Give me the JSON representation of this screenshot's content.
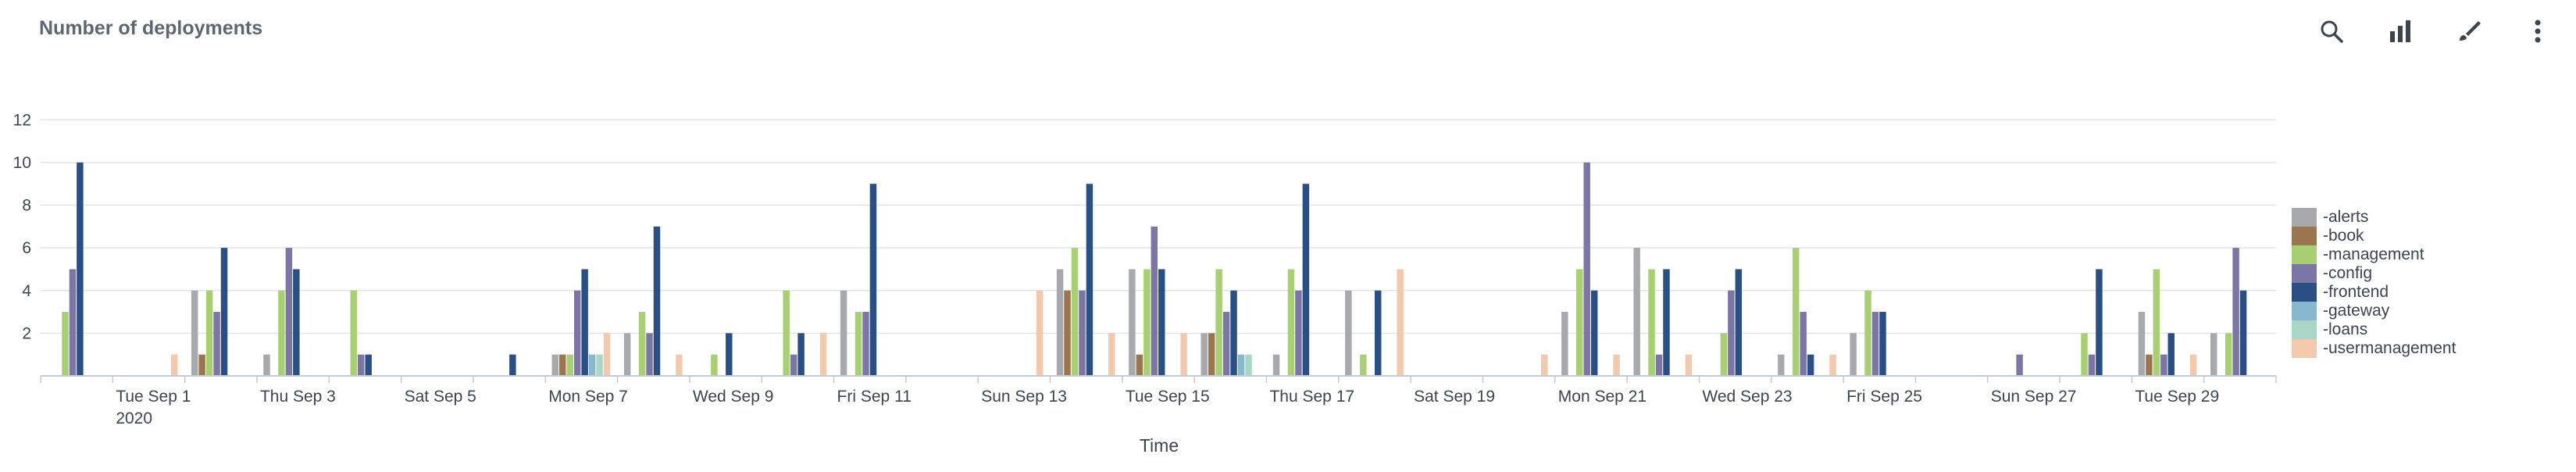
{
  "panel": {
    "title": "Number of deployments"
  },
  "toolbar": {
    "icons": [
      "search-icon",
      "bar-chart-icon",
      "brush-icon",
      "more-vertical-icon"
    ]
  },
  "colors": {
    "grid": "#e1e6eb",
    "axis": "#c3cbd4",
    "series": [
      "#a7a9ac",
      "#9b7550",
      "#a8d072",
      "#7b76a6",
      "#294f84",
      "#86b8cf",
      "#a9d6c7",
      "#f2c9ad"
    ]
  },
  "chart_data": {
    "type": "bar",
    "xlabel": "Time",
    "ylabel": "",
    "ylim": [
      0,
      13
    ],
    "yticks": [
      2,
      4,
      6,
      8,
      10,
      12
    ],
    "grid": true,
    "legend_position": "right",
    "categories": [
      "Aug 31",
      "Sep 1",
      "Sep 2",
      "Sep 3",
      "Sep 4",
      "Sep 5",
      "Sep 6",
      "Sep 7",
      "Sep 8",
      "Sep 9",
      "Sep 10",
      "Sep 11",
      "Sep 12",
      "Sep 13",
      "Sep 14",
      "Sep 15",
      "Sep 16",
      "Sep 17",
      "Sep 18",
      "Sep 19",
      "Sep 20",
      "Sep 21",
      "Sep 22",
      "Sep 23",
      "Sep 24",
      "Sep 25",
      "Sep 26",
      "Sep 27",
      "Sep 28",
      "Sep 29",
      "Sep 30"
    ],
    "x_tick_labels": [
      {
        "label": "Tue Sep 1",
        "sublabel": "2020",
        "index": 1
      },
      {
        "label": "Thu Sep 3",
        "sublabel": "",
        "index": 3
      },
      {
        "label": "Sat Sep 5",
        "sublabel": "",
        "index": 5
      },
      {
        "label": "Mon Sep 7",
        "sublabel": "",
        "index": 7
      },
      {
        "label": "Wed Sep 9",
        "sublabel": "",
        "index": 9
      },
      {
        "label": "Fri Sep 11",
        "sublabel": "",
        "index": 11
      },
      {
        "label": "Sun Sep 13",
        "sublabel": "",
        "index": 13
      },
      {
        "label": "Tue Sep 15",
        "sublabel": "",
        "index": 15
      },
      {
        "label": "Thu Sep 17",
        "sublabel": "",
        "index": 17
      },
      {
        "label": "Sat Sep 19",
        "sublabel": "",
        "index": 19
      },
      {
        "label": "Mon Sep 21",
        "sublabel": "",
        "index": 21
      },
      {
        "label": "Wed Sep 23",
        "sublabel": "",
        "index": 23
      },
      {
        "label": "Fri Sep 25",
        "sublabel": "",
        "index": 25
      },
      {
        "label": "Sun Sep 27",
        "sublabel": "",
        "index": 27
      },
      {
        "label": "Tue Sep 29",
        "sublabel": "",
        "index": 29
      }
    ],
    "series": [
      {
        "name": "-alerts",
        "values": [
          0,
          0,
          4,
          1,
          0,
          0,
          0,
          1,
          2,
          0,
          0,
          4,
          0,
          0,
          5,
          5,
          2,
          1,
          4,
          0,
          0,
          3,
          6,
          0,
          1,
          2,
          0,
          0,
          0,
          3,
          2
        ]
      },
      {
        "name": "-book",
        "values": [
          0,
          0,
          1,
          0,
          0,
          0,
          0,
          1,
          0,
          0,
          0,
          0,
          0,
          0,
          4,
          1,
          2,
          0,
          0,
          0,
          0,
          0,
          0,
          0,
          0,
          0,
          0,
          0,
          0,
          1,
          0
        ]
      },
      {
        "name": "-management",
        "values": [
          3,
          0,
          4,
          4,
          4,
          0,
          0,
          1,
          3,
          1,
          4,
          3,
          0,
          0,
          6,
          5,
          5,
          5,
          1,
          0,
          0,
          5,
          5,
          2,
          6,
          4,
          0,
          0,
          2,
          5,
          2
        ]
      },
      {
        "name": "-config",
        "values": [
          5,
          0,
          3,
          6,
          1,
          0,
          0,
          4,
          2,
          0,
          1,
          3,
          0,
          0,
          4,
          7,
          3,
          4,
          0,
          0,
          0,
          10,
          1,
          4,
          3,
          3,
          0,
          1,
          1,
          1,
          6
        ]
      },
      {
        "name": "-frontend",
        "values": [
          10,
          0,
          6,
          5,
          1,
          0,
          1,
          5,
          7,
          2,
          2,
          9,
          0,
          0,
          9,
          5,
          4,
          9,
          4,
          0,
          0,
          4,
          5,
          5,
          1,
          3,
          0,
          0,
          5,
          2,
          4
        ]
      },
      {
        "name": "-gateway",
        "values": [
          0,
          0,
          0,
          0,
          0,
          0,
          0,
          1,
          0,
          0,
          0,
          0,
          0,
          0,
          0,
          0,
          1,
          0,
          0,
          0,
          0,
          0,
          0,
          0,
          0,
          0,
          0,
          0,
          0,
          0,
          0
        ]
      },
      {
        "name": "-loans",
        "values": [
          0,
          0,
          0,
          0,
          0,
          0,
          0,
          1,
          0,
          0,
          0,
          0,
          0,
          0,
          0,
          0,
          1,
          0,
          0,
          0,
          0,
          0,
          0,
          0,
          0,
          0,
          0,
          0,
          0,
          0,
          0
        ]
      },
      {
        "name": "-usermanagement",
        "values": [
          0,
          1,
          0,
          0,
          0,
          0,
          0,
          2,
          1,
          0,
          2,
          0,
          0,
          4,
          2,
          2,
          0,
          0,
          5,
          0,
          1,
          1,
          1,
          0,
          1,
          0,
          0,
          0,
          0,
          1,
          0
        ]
      }
    ]
  }
}
